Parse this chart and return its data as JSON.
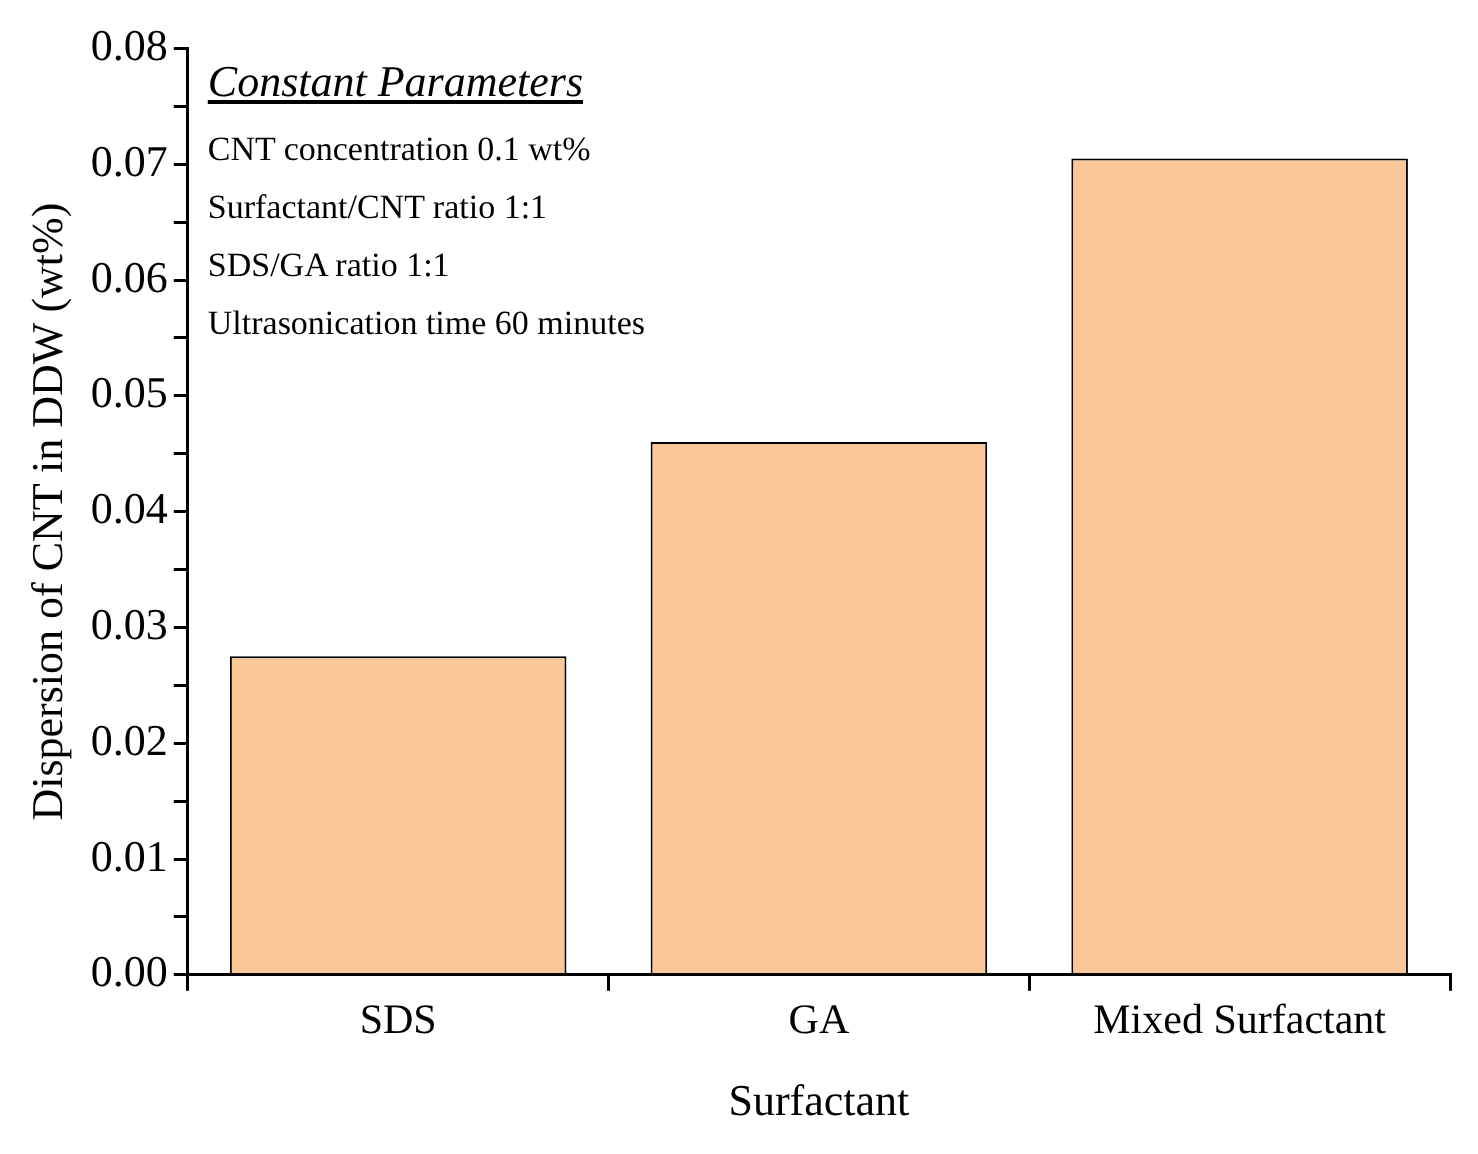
{
  "chart_data": {
    "type": "bar",
    "xlabel": "Surfactant",
    "ylabel": "Dispersion of CNT in DDW (wt%)",
    "categories": [
      "SDS",
      "GA",
      "Mixed Surfactant"
    ],
    "values": [
      0.0275,
      0.046,
      0.0705
    ],
    "color": "#fac898",
    "ylim": [
      0,
      0.08
    ],
    "yticks": [
      {
        "value": 0,
        "label": "0.00"
      },
      {
        "value": 0.005,
        "label": null
      },
      {
        "value": 0.01,
        "label": "0.01"
      },
      {
        "value": 0.015,
        "label": null
      },
      {
        "value": 0.02,
        "label": "0.02"
      },
      {
        "value": 0.025,
        "label": null
      },
      {
        "value": 0.03,
        "label": "0.03"
      },
      {
        "value": 0.035,
        "label": null
      },
      {
        "value": 0.04,
        "label": "0.04"
      },
      {
        "value": 0.045,
        "label": null
      },
      {
        "value": 0.05,
        "label": "0.05"
      },
      {
        "value": 0.055,
        "label": null
      },
      {
        "value": 0.06,
        "label": "0.06"
      },
      {
        "value": 0.065,
        "label": null
      },
      {
        "value": 0.07,
        "label": "0.07"
      },
      {
        "value": 0.075,
        "label": null
      },
      {
        "value": 0.08,
        "label": "0.08"
      }
    ],
    "grid": false,
    "legend": false,
    "annotations": [
      "Constant Parameters",
      "CNT concentration 0.1 wt%",
      "Surfactant/CNT ratio 1:1",
      "SDS/GA ratio 1:1",
      "Ultrasonication time 60 minutes"
    ]
  }
}
